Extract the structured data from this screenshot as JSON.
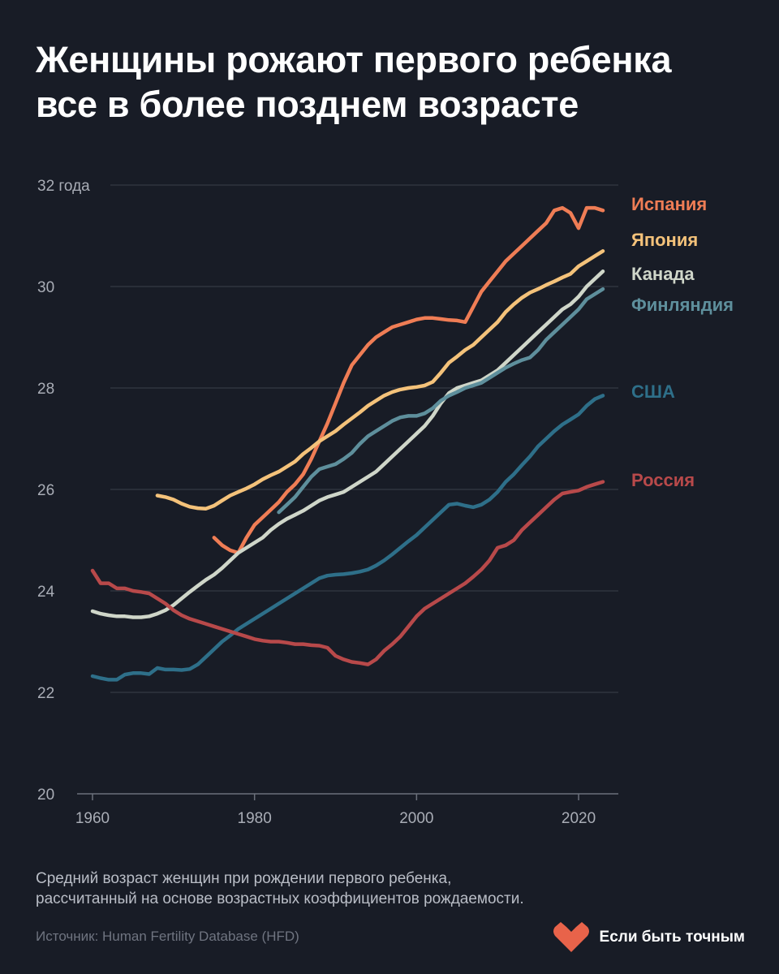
{
  "title": {
    "line1": "Женщины рожают первого ребенка",
    "line2": "все в более позднем возрасте"
  },
  "footnote": {
    "line1": "Средний возраст женщин при рождении первого ребенка,",
    "line2": "рассчитанный на основе возрастных коэффициентов рождаемости."
  },
  "source": "Источник: Human Fertility Database (HFD)",
  "brand": {
    "name": "Если быть точным",
    "logo_icon": "heart-logo-icon",
    "logo_color": "#e8634a"
  },
  "colors": {
    "background": "#181c26",
    "grid": "#3a3f4b",
    "axis_text": "#a9adb6"
  },
  "chart_data": {
    "type": "line",
    "title": "",
    "xlabel": "",
    "ylabel": "",
    "xlim": [
      1960,
      2023
    ],
    "ylim": [
      20,
      32
    ],
    "x_ticks": [
      1960,
      1980,
      2000,
      2020
    ],
    "y_ticks": [
      {
        "value": 20,
        "label": "20"
      },
      {
        "value": 22,
        "label": "22"
      },
      {
        "value": 24,
        "label": "24"
      },
      {
        "value": 26,
        "label": "26"
      },
      {
        "value": 28,
        "label": "28"
      },
      {
        "value": 30,
        "label": "30"
      },
      {
        "value": 32,
        "label": "32 года"
      }
    ],
    "grid": "horizontal",
    "legend": "direct labels at right end of lines",
    "series": [
      {
        "name": "Испания",
        "color": "#ef7d55",
        "x": [
          1975,
          1976,
          1977,
          1978,
          1979,
          1980,
          1981,
          1982,
          1983,
          1984,
          1985,
          1986,
          1987,
          1988,
          1989,
          1990,
          1991,
          1992,
          1993,
          1994,
          1995,
          1996,
          1997,
          1998,
          1999,
          2000,
          2001,
          2002,
          2003,
          2004,
          2005,
          2006,
          2007,
          2008,
          2009,
          2010,
          2011,
          2012,
          2013,
          2014,
          2015,
          2016,
          2017,
          2018,
          2019,
          2020,
          2021,
          2022,
          2023
        ],
        "y": [
          25.05,
          24.9,
          24.8,
          24.75,
          25.05,
          25.3,
          25.45,
          25.6,
          25.75,
          25.95,
          26.1,
          26.3,
          26.6,
          26.95,
          27.3,
          27.7,
          28.1,
          28.45,
          28.65,
          28.85,
          29.0,
          29.1,
          29.2,
          29.25,
          29.3,
          29.35,
          29.38,
          29.38,
          29.36,
          29.34,
          29.33,
          29.3,
          29.6,
          29.9,
          30.1,
          30.3,
          30.5,
          30.65,
          30.8,
          30.95,
          31.1,
          31.25,
          31.5,
          31.55,
          31.45,
          31.15,
          31.55,
          31.55,
          31.5
        ]
      },
      {
        "name": "Япония",
        "color": "#f4c27a",
        "x": [
          1968,
          1969,
          1970,
          1971,
          1972,
          1973,
          1974,
          1975,
          1976,
          1977,
          1978,
          1979,
          1980,
          1981,
          1982,
          1983,
          1984,
          1985,
          1986,
          1987,
          1988,
          1989,
          1990,
          1991,
          1992,
          1993,
          1994,
          1995,
          1996,
          1997,
          1998,
          1999,
          2000,
          2001,
          2002,
          2003,
          2004,
          2005,
          2006,
          2007,
          2008,
          2009,
          2010,
          2011,
          2012,
          2013,
          2014,
          2015,
          2016,
          2017,
          2018,
          2019,
          2020,
          2021,
          2022,
          2023
        ],
        "y": [
          25.88,
          25.85,
          25.8,
          25.72,
          25.66,
          25.63,
          25.62,
          25.68,
          25.78,
          25.88,
          25.95,
          26.02,
          26.1,
          26.2,
          26.28,
          26.35,
          26.45,
          26.55,
          26.7,
          26.82,
          26.95,
          27.05,
          27.15,
          27.28,
          27.4,
          27.52,
          27.65,
          27.75,
          27.85,
          27.92,
          27.97,
          28.0,
          28.02,
          28.05,
          28.12,
          28.3,
          28.5,
          28.62,
          28.75,
          28.85,
          29.0,
          29.15,
          29.3,
          29.5,
          29.65,
          29.78,
          29.88,
          29.95,
          30.03,
          30.1,
          30.18,
          30.25,
          30.4,
          30.5,
          30.6,
          30.7
        ]
      },
      {
        "name": "Канада",
        "color": "#cfd6c9",
        "x": [
          1960,
          1961,
          1962,
          1963,
          1964,
          1965,
          1966,
          1967,
          1968,
          1969,
          1970,
          1971,
          1972,
          1973,
          1974,
          1975,
          1976,
          1977,
          1978,
          1979,
          1980,
          1981,
          1982,
          1983,
          1984,
          1985,
          1986,
          1987,
          1988,
          1989,
          1990,
          1991,
          1992,
          1993,
          1994,
          1995,
          1996,
          1997,
          1998,
          1999,
          2000,
          2001,
          2002,
          2003,
          2004,
          2005,
          2006,
          2007,
          2008,
          2009,
          2010,
          2011,
          2012,
          2013,
          2014,
          2015,
          2016,
          2017,
          2018,
          2019,
          2020,
          2021,
          2022,
          2023
        ],
        "y": [
          23.6,
          23.55,
          23.52,
          23.5,
          23.5,
          23.48,
          23.48,
          23.5,
          23.55,
          23.62,
          23.72,
          23.85,
          23.98,
          24.1,
          24.22,
          24.32,
          24.45,
          24.6,
          24.75,
          24.85,
          24.95,
          25.05,
          25.2,
          25.32,
          25.42,
          25.5,
          25.58,
          25.68,
          25.78,
          25.85,
          25.9,
          25.95,
          26.05,
          26.15,
          26.25,
          26.35,
          26.5,
          26.65,
          26.8,
          26.95,
          27.1,
          27.25,
          27.45,
          27.7,
          27.9,
          28.0,
          28.05,
          28.1,
          28.15,
          28.25,
          28.35,
          28.5,
          28.65,
          28.8,
          28.95,
          29.1,
          29.25,
          29.4,
          29.55,
          29.65,
          29.8,
          30.0,
          30.15,
          30.3
        ]
      },
      {
        "name": "Финляндия",
        "color": "#5e8f9c",
        "x": [
          1983,
          1984,
          1985,
          1986,
          1987,
          1988,
          1989,
          1990,
          1991,
          1992,
          1993,
          1994,
          1995,
          1996,
          1997,
          1998,
          1999,
          2000,
          2001,
          2002,
          2003,
          2004,
          2005,
          2006,
          2007,
          2008,
          2009,
          2010,
          2011,
          2012,
          2013,
          2014,
          2015,
          2016,
          2017,
          2018,
          2019,
          2020,
          2021,
          2022,
          2023
        ],
        "y": [
          25.55,
          25.7,
          25.85,
          26.05,
          26.25,
          26.4,
          26.45,
          26.5,
          26.6,
          26.72,
          26.9,
          27.05,
          27.15,
          27.25,
          27.35,
          27.42,
          27.45,
          27.45,
          27.5,
          27.6,
          27.75,
          27.85,
          27.92,
          28.0,
          28.05,
          28.1,
          28.2,
          28.3,
          28.4,
          28.48,
          28.55,
          28.6,
          28.75,
          28.95,
          29.1,
          29.25,
          29.4,
          29.55,
          29.75,
          29.85,
          29.95
        ]
      },
      {
        "name": "США",
        "color": "#2e6f89",
        "x": [
          1960,
          1961,
          1962,
          1963,
          1964,
          1965,
          1966,
          1967,
          1968,
          1969,
          1970,
          1971,
          1972,
          1973,
          1974,
          1975,
          1976,
          1977,
          1978,
          1979,
          1980,
          1981,
          1982,
          1983,
          1984,
          1985,
          1986,
          1987,
          1988,
          1989,
          1990,
          1991,
          1992,
          1993,
          1994,
          1995,
          1996,
          1997,
          1998,
          1999,
          2000,
          2001,
          2002,
          2003,
          2004,
          2005,
          2006,
          2007,
          2008,
          2009,
          2010,
          2011,
          2012,
          2013,
          2014,
          2015,
          2016,
          2017,
          2018,
          2019,
          2020,
          2021,
          2022,
          2023
        ],
        "y": [
          22.32,
          22.28,
          22.25,
          22.25,
          22.35,
          22.38,
          22.38,
          22.36,
          22.48,
          22.45,
          22.45,
          22.44,
          22.46,
          22.55,
          22.7,
          22.85,
          23.0,
          23.12,
          23.25,
          23.35,
          23.45,
          23.55,
          23.65,
          23.75,
          23.85,
          23.95,
          24.05,
          24.15,
          24.25,
          24.3,
          24.32,
          24.33,
          24.35,
          24.38,
          24.42,
          24.5,
          24.6,
          24.72,
          24.85,
          24.98,
          25.1,
          25.25,
          25.4,
          25.55,
          25.7,
          25.72,
          25.68,
          25.65,
          25.7,
          25.8,
          25.95,
          26.15,
          26.3,
          26.48,
          26.65,
          26.85,
          27.0,
          27.15,
          27.28,
          27.38,
          27.48,
          27.65,
          27.78,
          27.85
        ]
      },
      {
        "name": "Россия",
        "color": "#b8494a",
        "x": [
          1960,
          1961,
          1962,
          1963,
          1964,
          1965,
          1966,
          1967,
          1968,
          1969,
          1970,
          1971,
          1972,
          1973,
          1974,
          1975,
          1976,
          1977,
          1978,
          1979,
          1980,
          1981,
          1982,
          1983,
          1984,
          1985,
          1986,
          1987,
          1988,
          1989,
          1990,
          1991,
          1992,
          1993,
          1994,
          1995,
          1996,
          1997,
          1998,
          1999,
          2000,
          2001,
          2002,
          2003,
          2004,
          2005,
          2006,
          2007,
          2008,
          2009,
          2010,
          2011,
          2012,
          2013,
          2014,
          2015,
          2016,
          2017,
          2018,
          2019,
          2020,
          2021,
          2022,
          2023
        ],
        "y": [
          24.4,
          24.15,
          24.15,
          24.05,
          24.05,
          24.0,
          23.98,
          23.95,
          23.85,
          23.75,
          23.62,
          23.52,
          23.45,
          23.4,
          23.35,
          23.3,
          23.25,
          23.2,
          23.15,
          23.1,
          23.05,
          23.02,
          23.0,
          23.0,
          22.98,
          22.95,
          22.95,
          22.93,
          22.92,
          22.88,
          22.72,
          22.65,
          22.6,
          22.58,
          22.55,
          22.65,
          22.82,
          22.95,
          23.1,
          23.3,
          23.5,
          23.65,
          23.75,
          23.85,
          23.95,
          24.05,
          24.15,
          24.28,
          24.42,
          24.6,
          24.85,
          24.9,
          25.0,
          25.2,
          25.35,
          25.5,
          25.65,
          25.8,
          25.92,
          25.95,
          25.98,
          26.05,
          26.1,
          26.15
        ]
      }
    ]
  }
}
